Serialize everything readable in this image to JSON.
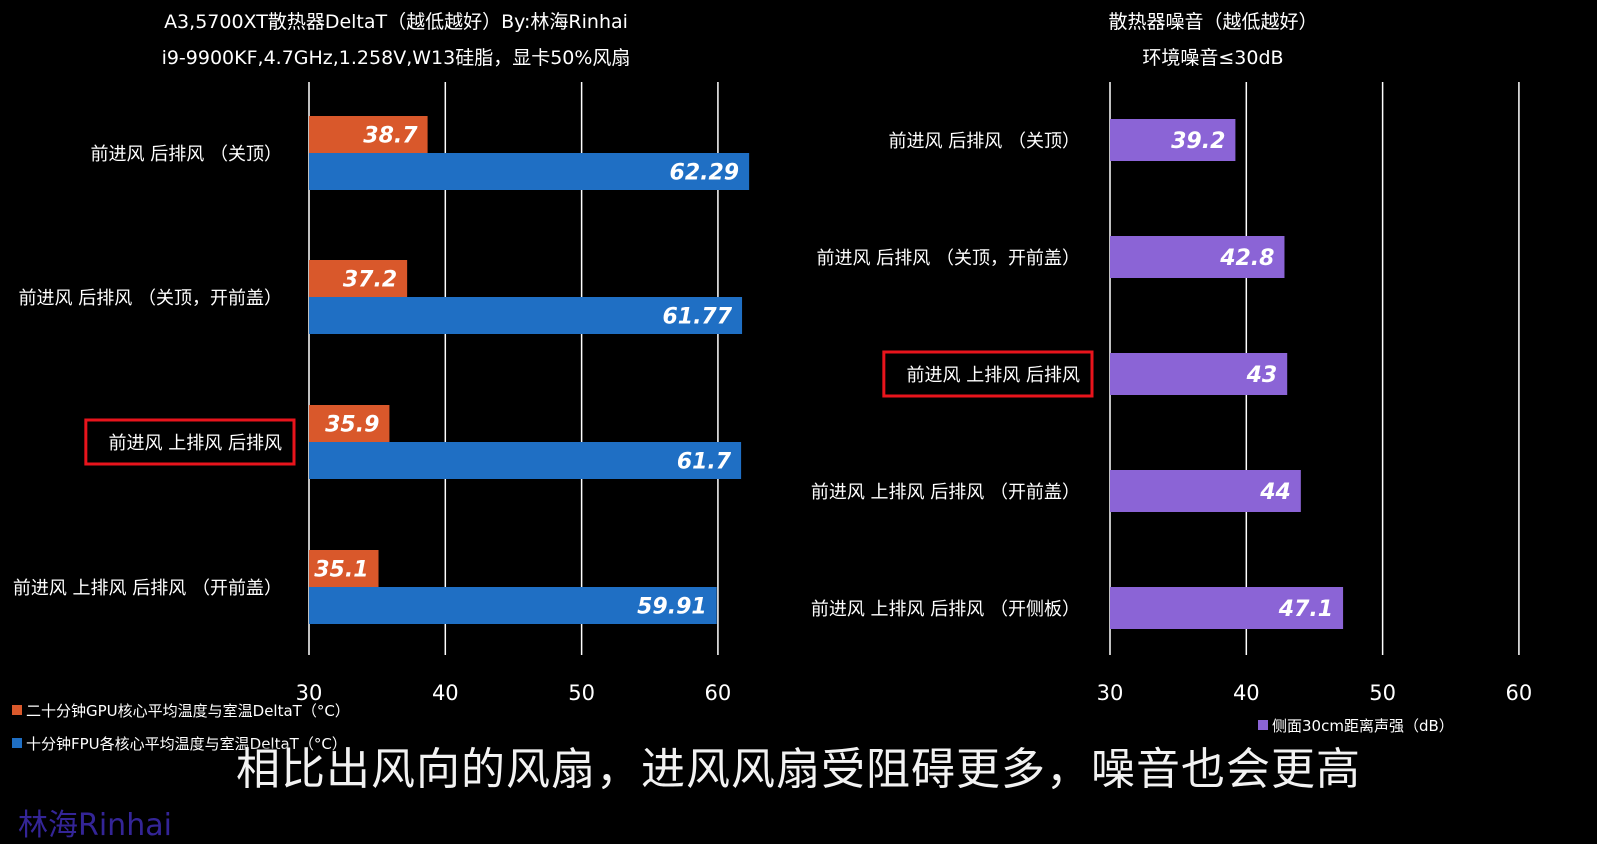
{
  "chart_data": [
    {
      "type": "bar",
      "orientation": "horizontal",
      "title": "A3,5700XT散热器DeltaT（越低越好）By:林海Rinhai",
      "subtitle": "i9-9900KF,4.7GHz,1.258V,W13硅脂，显卡50%风扇",
      "categories": [
        "前进风 后排风 （关顶）",
        "前进风 后排风 （关顶，开前盖）",
        "前进风 上排风 后排风",
        "前进风 上排风 后排风 （开前盖）"
      ],
      "highlighted_category_index": 2,
      "series": [
        {
          "name": "二十分钟GPU核心平均温度与室温DeltaT（°C）",
          "color": "#d9582b",
          "values": [
            38.7,
            37.2,
            35.9,
            35.1
          ],
          "labels": [
            "38.7",
            "37.2",
            "35.9",
            "35.1"
          ]
        },
        {
          "name": "十分钟FPU各核心平均温度与室温DeltaT（°C）",
          "color": "#1f6fc4",
          "values": [
            62.29,
            61.77,
            61.7,
            59.91
          ],
          "labels": [
            "62.29",
            "61.77",
            "61.7",
            "59.91"
          ]
        }
      ],
      "xlim": [
        30,
        62.5
      ],
      "ticks": [
        "30",
        "40",
        "50",
        "60"
      ],
      "tick_values": [
        30,
        40,
        50,
        60
      ],
      "grid": true,
      "legend": "bottom-left"
    },
    {
      "type": "bar",
      "orientation": "horizontal",
      "title": "散热器噪音（越低越好）",
      "subtitle": "环境噪音≤30dB",
      "categories": [
        "前进风 后排风 （关顶）",
        "前进风 后排风 （关顶，开前盖）",
        "前进风 上排风 后排风",
        "前进风 上排风 后排风 （开前盖）",
        "前进风 上排风 后排风 （开侧板）"
      ],
      "highlighted_category_index": 2,
      "series": [
        {
          "name": "侧面30cm距离声强（dB）",
          "color": "#8b64d6",
          "values": [
            39.2,
            42.8,
            43,
            44,
            47.1
          ],
          "labels": [
            "39.2",
            "42.8",
            "43",
            "44",
            "47.1"
          ]
        }
      ],
      "xlim": [
        30,
        62.5
      ],
      "ticks": [
        "30",
        "40",
        "50",
        "60"
      ],
      "tick_values": [
        30,
        40,
        50,
        60
      ],
      "grid": true,
      "legend": "bottom"
    }
  ],
  "caption": "相比出风向的风扇，进风风扇受阻碍更多，噪音也会更高",
  "watermark": "林海Rinhai",
  "colors": {
    "highlight": "#e8141c",
    "grid": "#ffffff",
    "background": "#000000",
    "label_text": "#ffffff"
  }
}
